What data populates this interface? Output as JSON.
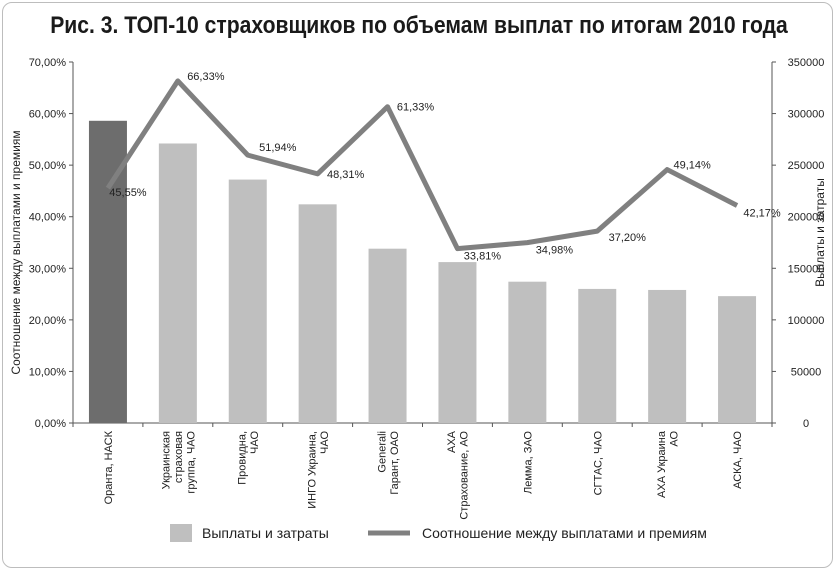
{
  "chart_data": {
    "type": "bar",
    "title": "Рис. 3. ТОП-10 страховщиков по объемам выплат по итогам 2010 года",
    "ylabel_left": "Соотношение между выплатами и премиям",
    "ylabel_right": "Выплаты и затраты",
    "y_left_ticks": [
      "0,00%",
      "10,00%",
      "20,00%",
      "30,00%",
      "40,00%",
      "50,00%",
      "60,00%",
      "70,00%"
    ],
    "y_right_ticks": [
      "0",
      "50000",
      "100000",
      "150000",
      "200000",
      "250000",
      "300000",
      "350000"
    ],
    "ylim_left": [
      0,
      70
    ],
    "ylim_right": [
      0,
      350000
    ],
    "categories": [
      [
        "Оранта, НАСК"
      ],
      [
        "Украинская",
        "страховая",
        "группа, ЧАО"
      ],
      [
        "Провидна,",
        "ЧАО"
      ],
      [
        "ИНГО Украина,",
        "ЧАО"
      ],
      [
        "Generali",
        "Гарант, ОАО"
      ],
      [
        "АХА",
        "Страхование, АО"
      ],
      [
        "Лемма, ЗАО"
      ],
      [
        "СГТАС, ЧАО"
      ],
      [
        "АХА Украина",
        "АО"
      ],
      [
        "АСКА, ЧАО"
      ]
    ],
    "series": [
      {
        "name": "Выплаты и затраты",
        "type": "bar",
        "axis": "right",
        "values": [
          293000,
          271000,
          236000,
          212000,
          169000,
          156000,
          137000,
          130000,
          129000,
          123000
        ]
      },
      {
        "name": "Соотношение между выплатами и премиям",
        "type": "line",
        "axis": "left",
        "values": [
          45.55,
          66.33,
          51.94,
          48.31,
          61.33,
          33.81,
          34.98,
          37.2,
          49.14,
          42.17
        ],
        "labels": [
          "45,55%",
          "66,33%",
          "51,94%",
          "48,31%",
          "61,33%",
          "33,81%",
          "34,98%",
          "37,20%",
          "49,14%",
          "42,17%"
        ]
      }
    ],
    "colors": {
      "bar": "#bfbfbf",
      "bar_highlight": "#6d6d6d",
      "line": "#808080",
      "axis": "#555555",
      "text": "#222222"
    },
    "legend": [
      "Выплаты и затраты",
      "Соотношение между выплатами и премиям"
    ]
  }
}
